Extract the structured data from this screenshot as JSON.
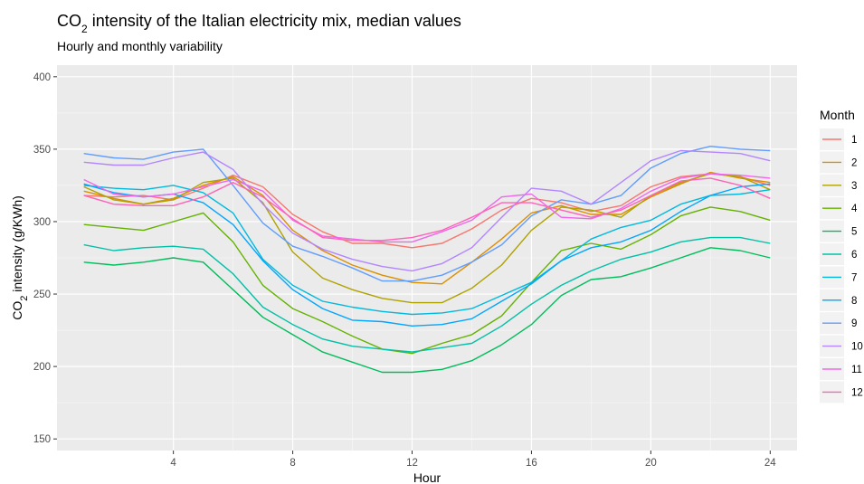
{
  "chart_data": {
    "type": "line",
    "title_main": "CO",
    "title_sub": "2",
    "title_rest": " intensity of the Italian electricity mix, median values",
    "subtitle": "Hourly and monthly variability",
    "xlabel": "Hour",
    "ylabel_main": "CO",
    "ylabel_sub": "2",
    "ylabel_rest": " intensity (g/KWh)",
    "legend_title": "Month",
    "xlim": [
      0.1,
      24.9
    ],
    "ylim": [
      142,
      408
    ],
    "x_ticks": [
      4,
      8,
      12,
      16,
      20,
      24
    ],
    "y_ticks": [
      150,
      200,
      250,
      300,
      350,
      400
    ],
    "x": [
      1,
      2,
      3,
      4,
      5,
      6,
      7,
      8,
      9,
      10,
      11,
      12,
      13,
      14,
      15,
      16,
      17,
      18,
      19,
      20,
      21,
      22,
      23,
      24
    ],
    "series": [
      {
        "name": "1",
        "color": "#F8766D",
        "values": [
          318,
          317,
          318,
          315,
          323,
          332,
          324,
          305,
          293,
          285,
          285,
          282,
          285,
          295,
          308,
          316,
          313,
          307,
          311,
          324,
          331,
          333,
          331,
          325
        ]
      },
      {
        "name": "2",
        "color": "#DB8E00",
        "values": [
          321,
          316,
          312,
          316,
          325,
          331,
          318,
          294,
          280,
          270,
          263,
          258,
          257,
          272,
          288,
          306,
          311,
          305,
          305,
          317,
          326,
          334,
          330,
          327
        ]
      },
      {
        "name": "3",
        "color": "#AEA200",
        "values": [
          324,
          315,
          312,
          315,
          327,
          330,
          313,
          279,
          261,
          253,
          247,
          244,
          244,
          254,
          270,
          294,
          310,
          308,
          303,
          318,
          327,
          333,
          331,
          322
        ]
      },
      {
        "name": "4",
        "color": "#64B200",
        "values": [
          298,
          296,
          294,
          300,
          306,
          286,
          256,
          240,
          231,
          221,
          212,
          209,
          216,
          222,
          235,
          258,
          280,
          285,
          281,
          291,
          304,
          310,
          307,
          301
        ]
      },
      {
        "name": "5",
        "color": "#00BD5C",
        "values": [
          272,
          270,
          272,
          275,
          272,
          253,
          234,
          222,
          210,
          203,
          196,
          196,
          198,
          204,
          215,
          229,
          249,
          260,
          262,
          268,
          275,
          282,
          280,
          275
        ]
      },
      {
        "name": "6",
        "color": "#00C1A7",
        "values": [
          284,
          280,
          282,
          283,
          281,
          264,
          241,
          229,
          219,
          214,
          212,
          210,
          213,
          216,
          228,
          243,
          256,
          266,
          274,
          279,
          286,
          289,
          289,
          285
        ]
      },
      {
        "name": "7",
        "color": "#00BADE",
        "values": [
          325,
          323,
          322,
          325,
          320,
          306,
          274,
          256,
          245,
          241,
          238,
          236,
          237,
          240,
          249,
          258,
          273,
          288,
          296,
          301,
          312,
          318,
          319,
          322
        ]
      },
      {
        "name": "8",
        "color": "#00A6FF",
        "values": [
          326,
          320,
          317,
          319,
          313,
          298,
          273,
          253,
          240,
          232,
          231,
          228,
          229,
          233,
          245,
          257,
          273,
          282,
          286,
          294,
          307,
          318,
          324,
          326
        ]
      },
      {
        "name": "9",
        "color": "#619CFF",
        "values": [
          347,
          344,
          343,
          348,
          350,
          325,
          299,
          283,
          276,
          268,
          259,
          259,
          263,
          272,
          284,
          304,
          315,
          312,
          318,
          337,
          347,
          352,
          350,
          349
        ]
      },
      {
        "name": "10",
        "color": "#B385FF",
        "values": [
          341,
          339,
          339,
          344,
          348,
          336,
          312,
          292,
          281,
          274,
          269,
          266,
          271,
          282,
          303,
          323,
          321,
          312,
          327,
          342,
          349,
          348,
          347,
          342
        ]
      },
      {
        "name": "11",
        "color": "#EF67EB",
        "values": [
          329,
          319,
          317,
          319,
          324,
          329,
          321,
          301,
          290,
          288,
          286,
          286,
          293,
          301,
          317,
          319,
          303,
          302,
          309,
          321,
          330,
          333,
          332,
          330
        ]
      },
      {
        "name": "12",
        "color": "#FF63B6",
        "values": [
          318,
          312,
          311,
          311,
          317,
          327,
          317,
          302,
          289,
          287,
          287,
          289,
          294,
          303,
          313,
          313,
          308,
          303,
          308,
          318,
          328,
          330,
          325,
          316
        ]
      }
    ]
  }
}
